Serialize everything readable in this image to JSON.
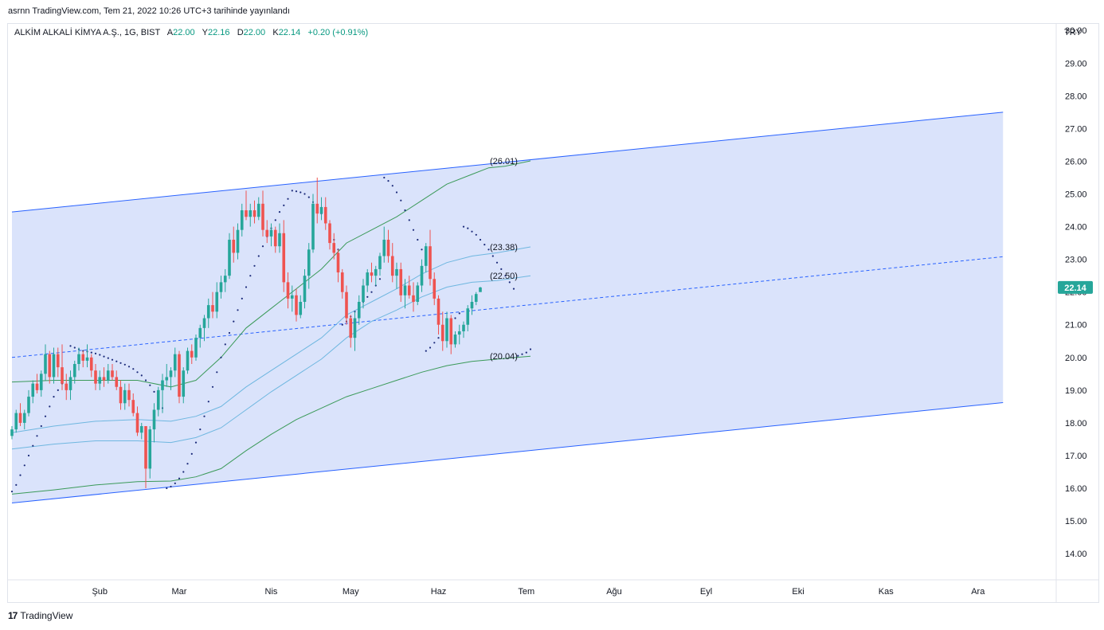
{
  "header": {
    "published": "asrnn TradingView.com, Tem 21, 2022 10:26 UTC+3 tarihinde yayınlandı"
  },
  "legend": {
    "symbol": "ALKİM ALKALİ KİMYA A.Ş., 1G, BIST",
    "o_label": "A",
    "o_value": "22.00",
    "h_label": "Y",
    "h_value": "22.16",
    "l_label": "D",
    "l_value": "22.00",
    "c_label": "K",
    "c_value": "22.14",
    "change": "+0.20 (+0.91%)"
  },
  "footer": {
    "brand": "TradingView",
    "mark": "17"
  },
  "colors": {
    "up": "#26a69a",
    "down": "#ef5350",
    "channel_fill": "#dae3fb",
    "channel_line": "#2962ff",
    "sar": "#1c2b7a",
    "band_outer": "#3b9a59",
    "band_inner": "#6fb7e0",
    "last_price_bg": "#26a69a"
  },
  "chart_data": {
    "type": "candlestick",
    "currency": "TRY",
    "last_price": "22.14",
    "y_ticks": [
      "14.00",
      "15.00",
      "16.00",
      "17.00",
      "18.00",
      "19.00",
      "20.00",
      "21.00",
      "22.00",
      "23.00",
      "24.00",
      "25.00",
      "26.00",
      "27.00",
      "28.00",
      "29.00",
      "30.00"
    ],
    "ylim": [
      13.2,
      30.2
    ],
    "x_ticks": [
      {
        "label": "Şub",
        "idx": 21
      },
      {
        "label": "Mar",
        "idx": 40
      },
      {
        "label": "Nis",
        "idx": 62
      },
      {
        "label": "May",
        "idx": 81
      },
      {
        "label": "Haz",
        "idx": 102
      },
      {
        "label": "Tem",
        "idx": 123
      },
      {
        "label": "Ağu",
        "idx": 144
      },
      {
        "label": "Eyl",
        "idx": 166
      },
      {
        "label": "Eki",
        "idx": 188
      },
      {
        "label": "Kas",
        "idx": 209
      },
      {
        "label": "Ara",
        "idx": 231
      }
    ],
    "band_labels": [
      {
        "text": "(26.01)",
        "value": 26.01
      },
      {
        "text": "(23.38)",
        "value": 23.38
      },
      {
        "text": "(22.50)",
        "value": 22.5
      },
      {
        "text": "(20.04)",
        "value": 20.04
      }
    ],
    "channel": {
      "upper": [
        [
          0,
          24.45
        ],
        [
          237,
          27.5
        ]
      ],
      "mid": [
        [
          0,
          20.0
        ],
        [
          237,
          23.08
        ]
      ],
      "lower": [
        [
          0,
          15.55
        ],
        [
          237,
          18.62
        ]
      ]
    },
    "candles": [
      [
        17.6,
        17.9,
        17.5,
        17.8
      ],
      [
        17.8,
        18.4,
        17.7,
        18.3
      ],
      [
        18.3,
        18.6,
        17.9,
        18.0
      ],
      [
        18.0,
        18.4,
        17.8,
        18.3
      ],
      [
        18.3,
        19.0,
        18.2,
        18.8
      ],
      [
        18.8,
        19.3,
        18.6,
        19.2
      ],
      [
        19.2,
        19.5,
        18.9,
        19.0
      ],
      [
        19.0,
        19.6,
        18.8,
        19.5
      ],
      [
        19.5,
        20.4,
        19.3,
        20.1
      ],
      [
        20.1,
        20.2,
        19.2,
        19.4
      ],
      [
        19.4,
        20.3,
        19.2,
        20.1
      ],
      [
        20.1,
        20.3,
        19.4,
        19.7
      ],
      [
        19.7,
        20.4,
        19.0,
        19.2
      ],
      [
        19.2,
        19.5,
        18.7,
        19.0
      ],
      [
        19.0,
        19.6,
        18.7,
        19.4
      ],
      [
        19.4,
        19.9,
        19.2,
        19.8
      ],
      [
        19.8,
        20.3,
        19.6,
        20.1
      ],
      [
        20.1,
        20.2,
        19.7,
        19.9
      ],
      [
        19.9,
        20.4,
        19.7,
        20.0
      ],
      [
        20.0,
        20.1,
        19.4,
        19.6
      ],
      [
        19.6,
        19.8,
        19.0,
        19.2
      ],
      [
        19.2,
        19.6,
        19.0,
        19.4
      ],
      [
        19.4,
        19.7,
        19.1,
        19.3
      ],
      [
        19.3,
        19.8,
        19.2,
        19.6
      ],
      [
        19.6,
        19.8,
        19.3,
        19.4
      ],
      [
        19.4,
        19.6,
        19.0,
        19.1
      ],
      [
        19.1,
        19.3,
        18.4,
        18.6
      ],
      [
        18.6,
        19.2,
        18.4,
        19.0
      ],
      [
        19.0,
        19.2,
        18.5,
        18.7
      ],
      [
        18.7,
        18.9,
        18.2,
        18.3
      ],
      [
        18.3,
        18.5,
        17.6,
        17.7
      ],
      [
        17.7,
        18.0,
        17.5,
        17.9
      ],
      [
        17.9,
        17.9,
        16.0,
        16.6
      ],
      [
        16.6,
        17.9,
        16.3,
        17.8
      ],
      [
        17.8,
        18.6,
        17.4,
        18.4
      ],
      [
        18.4,
        19.1,
        18.2,
        19.0
      ],
      [
        19.0,
        19.5,
        18.3,
        19.3
      ],
      [
        19.3,
        19.8,
        19.1,
        19.4
      ],
      [
        19.4,
        19.7,
        19.0,
        19.6
      ],
      [
        19.6,
        20.3,
        19.4,
        20.1
      ],
      [
        20.1,
        20.2,
        18.6,
        18.8
      ],
      [
        18.8,
        19.7,
        18.6,
        19.6
      ],
      [
        19.6,
        20.3,
        19.5,
        20.2
      ],
      [
        20.2,
        20.4,
        19.8,
        20.0
      ],
      [
        20.0,
        20.7,
        19.9,
        20.6
      ],
      [
        20.6,
        21.0,
        20.3,
        20.9
      ],
      [
        20.9,
        21.3,
        20.5,
        21.2
      ],
      [
        21.2,
        21.8,
        20.9,
        21.6
      ],
      [
        21.6,
        22.0,
        21.2,
        21.4
      ],
      [
        21.4,
        22.3,
        21.2,
        22.0
      ],
      [
        22.0,
        22.5,
        21.8,
        22.3
      ],
      [
        22.3,
        22.7,
        22.0,
        22.5
      ],
      [
        22.5,
        23.8,
        22.4,
        23.6
      ],
      [
        23.6,
        24.0,
        22.9,
        23.2
      ],
      [
        23.2,
        24.1,
        23.0,
        23.9
      ],
      [
        23.9,
        24.7,
        23.7,
        24.5
      ],
      [
        24.5,
        25.1,
        24.2,
        24.3
      ],
      [
        24.3,
        24.7,
        24.0,
        24.5
      ],
      [
        24.5,
        24.8,
        24.1,
        24.3
      ],
      [
        24.3,
        24.9,
        24.2,
        24.7
      ],
      [
        24.7,
        25.1,
        23.7,
        23.9
      ],
      [
        23.9,
        24.2,
        23.5,
        23.7
      ],
      [
        23.7,
        24.1,
        23.4,
        23.9
      ],
      [
        23.9,
        24.0,
        23.2,
        23.4
      ],
      [
        23.4,
        24.1,
        23.2,
        23.8
      ],
      [
        23.8,
        24.2,
        22.0,
        22.3
      ],
      [
        22.3,
        22.6,
        21.5,
        21.8
      ],
      [
        21.8,
        22.2,
        21.4,
        21.9
      ],
      [
        21.9,
        22.1,
        21.1,
        21.3
      ],
      [
        21.3,
        21.9,
        21.2,
        21.7
      ],
      [
        21.7,
        22.7,
        21.5,
        22.5
      ],
      [
        22.5,
        23.5,
        22.1,
        23.3
      ],
      [
        23.3,
        25.0,
        23.2,
        24.7
      ],
      [
        24.7,
        25.5,
        24.1,
        24.4
      ],
      [
        24.4,
        24.9,
        24.2,
        24.6
      ],
      [
        24.6,
        24.9,
        23.9,
        24.1
      ],
      [
        24.1,
        24.2,
        23.3,
        23.5
      ],
      [
        23.5,
        23.8,
        23.0,
        23.2
      ],
      [
        23.2,
        23.3,
        22.3,
        22.6
      ],
      [
        22.6,
        22.7,
        21.8,
        22.0
      ],
      [
        22.0,
        22.2,
        21.0,
        21.2
      ],
      [
        21.2,
        21.3,
        20.3,
        20.6
      ],
      [
        20.6,
        21.4,
        20.2,
        21.2
      ],
      [
        21.2,
        21.9,
        21.0,
        21.7
      ],
      [
        21.7,
        22.4,
        21.5,
        22.2
      ],
      [
        22.2,
        22.7,
        22.0,
        22.6
      ],
      [
        22.6,
        22.9,
        22.3,
        22.5
      ],
      [
        22.5,
        22.8,
        22.2,
        22.7
      ],
      [
        22.7,
        23.2,
        22.5,
        23.1
      ],
      [
        23.1,
        24.0,
        22.9,
        23.6
      ],
      [
        23.6,
        23.9,
        22.9,
        23.1
      ],
      [
        23.1,
        23.5,
        22.3,
        22.5
      ],
      [
        22.5,
        22.9,
        22.1,
        22.7
      ],
      [
        22.7,
        22.9,
        21.7,
        21.9
      ],
      [
        21.9,
        22.4,
        21.5,
        22.2
      ],
      [
        22.2,
        22.5,
        21.8,
        21.9
      ],
      [
        21.9,
        22.3,
        21.4,
        21.7
      ],
      [
        21.7,
        22.3,
        21.6,
        22.2
      ],
      [
        22.2,
        23.0,
        22.0,
        22.8
      ],
      [
        22.8,
        23.5,
        22.6,
        23.4
      ],
      [
        23.4,
        23.9,
        22.2,
        22.4
      ],
      [
        22.4,
        22.6,
        21.6,
        21.8
      ],
      [
        21.8,
        21.9,
        20.7,
        21.0
      ],
      [
        21.0,
        21.4,
        20.2,
        20.5
      ],
      [
        20.5,
        21.4,
        20.3,
        21.2
      ],
      [
        21.2,
        21.3,
        20.1,
        20.4
      ],
      [
        20.4,
        20.8,
        20.3,
        20.7
      ],
      [
        20.7,
        21.0,
        20.4,
        20.8
      ],
      [
        20.8,
        21.1,
        20.6,
        21.0
      ],
      [
        21.0,
        21.6,
        20.8,
        21.5
      ],
      [
        21.5,
        21.9,
        21.3,
        21.7
      ],
      [
        21.7,
        22.0,
        21.6,
        21.94
      ],
      [
        22.0,
        22.16,
        22.0,
        22.14
      ]
    ],
    "sar": [
      [
        0,
        15.9
      ],
      [
        1,
        16.1
      ],
      [
        2,
        16.4
      ],
      [
        3,
        16.7
      ],
      [
        4,
        17.0
      ],
      [
        5,
        17.3
      ],
      [
        6,
        17.6
      ],
      [
        7,
        17.9
      ],
      [
        8,
        18.2
      ],
      [
        9,
        18.5
      ],
      [
        10,
        18.8
      ],
      [
        11,
        19.0
      ],
      [
        12,
        19.2
      ],
      [
        14,
        20.35
      ],
      [
        15,
        20.3
      ],
      [
        16,
        20.25
      ],
      [
        17,
        20.2
      ],
      [
        18,
        20.18
      ],
      [
        19,
        20.15
      ],
      [
        20,
        20.12
      ],
      [
        21,
        20.08
      ],
      [
        22,
        20.03
      ],
      [
        23,
        19.98
      ],
      [
        24,
        19.93
      ],
      [
        25,
        19.88
      ],
      [
        26,
        19.83
      ],
      [
        27,
        19.78
      ],
      [
        28,
        19.72
      ],
      [
        29,
        19.65
      ],
      [
        30,
        19.55
      ],
      [
        31,
        19.45
      ],
      [
        32,
        19.3
      ],
      [
        33,
        19.15
      ],
      [
        34,
        18.95
      ],
      [
        35,
        18.7
      ],
      [
        36,
        18.45
      ],
      [
        37,
        16.0
      ],
      [
        38,
        16.05
      ],
      [
        39,
        16.15
      ],
      [
        40,
        16.3
      ],
      [
        41,
        16.5
      ],
      [
        42,
        16.75
      ],
      [
        43,
        17.05
      ],
      [
        44,
        17.4
      ],
      [
        45,
        17.8
      ],
      [
        46,
        18.2
      ],
      [
        47,
        18.65
      ],
      [
        48,
        19.1
      ],
      [
        49,
        19.55
      ],
      [
        50,
        20.0
      ],
      [
        51,
        20.4
      ],
      [
        52,
        20.75
      ],
      [
        53,
        21.1
      ],
      [
        54,
        21.45
      ],
      [
        55,
        21.8
      ],
      [
        56,
        22.15
      ],
      [
        57,
        22.5
      ],
      [
        58,
        22.8
      ],
      [
        59,
        23.1
      ],
      [
        60,
        23.4
      ],
      [
        61,
        23.7
      ],
      [
        62,
        23.95
      ],
      [
        63,
        24.2
      ],
      [
        64,
        24.45
      ],
      [
        65,
        24.65
      ],
      [
        66,
        24.85
      ],
      [
        67,
        25.1
      ],
      [
        68,
        25.08
      ],
      [
        69,
        25.05
      ],
      [
        70,
        25.0
      ],
      [
        71,
        24.9
      ],
      [
        72,
        24.75
      ],
      [
        73,
        24.6
      ],
      [
        74,
        24.4
      ],
      [
        75,
        24.15
      ],
      [
        76,
        23.9
      ],
      [
        77,
        23.6
      ],
      [
        78,
        23.3
      ],
      [
        79,
        21.0
      ],
      [
        80,
        21.1
      ],
      [
        81,
        21.25
      ],
      [
        82,
        21.4
      ],
      [
        83,
        21.55
      ],
      [
        84,
        21.7
      ],
      [
        85,
        21.85
      ],
      [
        86,
        22.0
      ],
      [
        87,
        22.2
      ],
      [
        88,
        22.4
      ],
      [
        89,
        25.5
      ],
      [
        90,
        25.4
      ],
      [
        91,
        25.25
      ],
      [
        92,
        25.05
      ],
      [
        93,
        24.8
      ],
      [
        94,
        24.5
      ],
      [
        95,
        24.2
      ],
      [
        96,
        23.9
      ],
      [
        97,
        23.6
      ],
      [
        98,
        23.3
      ],
      [
        99,
        20.2
      ],
      [
        100,
        20.3
      ],
      [
        101,
        20.45
      ],
      [
        102,
        20.6
      ],
      [
        103,
        20.75
      ],
      [
        104,
        20.9
      ],
      [
        105,
        21.05
      ],
      [
        106,
        21.2
      ],
      [
        107,
        21.35
      ],
      [
        108,
        24.0
      ],
      [
        109,
        23.95
      ],
      [
        110,
        23.85
      ],
      [
        111,
        23.75
      ],
      [
        112,
        23.6
      ],
      [
        113,
        23.45
      ],
      [
        114,
        23.3
      ],
      [
        115,
        23.1
      ],
      [
        116,
        22.9
      ],
      [
        117,
        22.7
      ],
      [
        118,
        22.5
      ],
      [
        119,
        22.3
      ],
      [
        120,
        22.1
      ],
      [
        121,
        20.05
      ],
      [
        122,
        20.1
      ],
      [
        123,
        20.15
      ],
      [
        124,
        20.25
      ]
    ],
    "bands": {
      "upper_outer": [
        [
          0,
          19.25
        ],
        [
          10,
          19.3
        ],
        [
          20,
          19.3
        ],
        [
          30,
          19.3
        ],
        [
          38,
          19.1
        ],
        [
          44,
          19.3
        ],
        [
          50,
          20.0
        ],
        [
          56,
          20.9
        ],
        [
          62,
          21.5
        ],
        [
          68,
          22.1
        ],
        [
          74,
          22.7
        ],
        [
          80,
          23.5
        ],
        [
          86,
          23.9
        ],
        [
          92,
          24.3
        ],
        [
          98,
          24.8
        ],
        [
          104,
          25.3
        ],
        [
          110,
          25.6
        ],
        [
          114,
          25.8
        ],
        [
          118,
          25.85
        ],
        [
          124,
          26.01
        ]
      ],
      "upper_inner": [
        [
          0,
          17.7
        ],
        [
          10,
          17.9
        ],
        [
          20,
          18.05
        ],
        [
          30,
          18.1
        ],
        [
          38,
          18.05
        ],
        [
          44,
          18.2
        ],
        [
          50,
          18.5
        ],
        [
          56,
          19.1
        ],
        [
          62,
          19.6
        ],
        [
          68,
          20.1
        ],
        [
          74,
          20.6
        ],
        [
          80,
          21.3
        ],
        [
          86,
          21.7
        ],
        [
          92,
          22.1
        ],
        [
          98,
          22.55
        ],
        [
          104,
          22.9
        ],
        [
          110,
          23.1
        ],
        [
          116,
          23.2
        ],
        [
          124,
          23.38
        ]
      ],
      "lower_inner": [
        [
          0,
          17.2
        ],
        [
          10,
          17.35
        ],
        [
          20,
          17.45
        ],
        [
          30,
          17.45
        ],
        [
          38,
          17.4
        ],
        [
          44,
          17.55
        ],
        [
          50,
          17.85
        ],
        [
          56,
          18.4
        ],
        [
          62,
          18.95
        ],
        [
          68,
          19.45
        ],
        [
          74,
          19.95
        ],
        [
          80,
          20.6
        ],
        [
          86,
          21.1
        ],
        [
          92,
          21.45
        ],
        [
          98,
          21.85
        ],
        [
          104,
          22.15
        ],
        [
          110,
          22.3
        ],
        [
          116,
          22.35
        ],
        [
          124,
          22.5
        ]
      ],
      "lower_outer": [
        [
          0,
          15.82
        ],
        [
          10,
          15.95
        ],
        [
          20,
          16.1
        ],
        [
          30,
          16.2
        ],
        [
          38,
          16.22
        ],
        [
          44,
          16.35
        ],
        [
          50,
          16.6
        ],
        [
          56,
          17.15
        ],
        [
          62,
          17.65
        ],
        [
          68,
          18.1
        ],
        [
          74,
          18.45
        ],
        [
          80,
          18.8
        ],
        [
          86,
          19.05
        ],
        [
          92,
          19.3
        ],
        [
          98,
          19.55
        ],
        [
          104,
          19.75
        ],
        [
          110,
          19.88
        ],
        [
          116,
          19.95
        ],
        [
          124,
          20.04
        ]
      ]
    }
  }
}
